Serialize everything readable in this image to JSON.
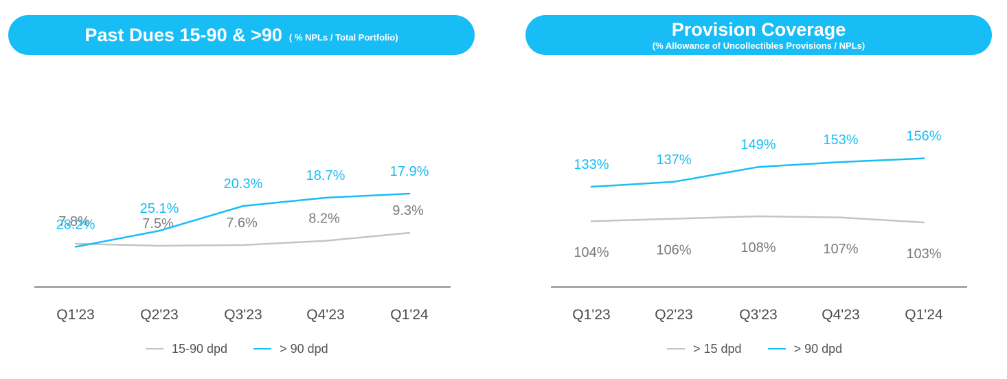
{
  "colors": {
    "blue": "#18bdf5",
    "gray": "#c4c4c4",
    "axis": "#8c8c8c"
  },
  "chart_data": [
    {
      "type": "line",
      "title": "Past Dues 15-90 & >90",
      "subtitle": "( % NPLs / Total Portfolio)",
      "categories": [
        "Q1'23",
        "Q2'23",
        "Q3'23",
        "Q4'23",
        "Q1'24"
      ],
      "series": [
        {
          "name": "15-90 dpd",
          "color": "#c4c4c4",
          "values": [
            7.8,
            7.5,
            7.6,
            8.2,
            9.3
          ],
          "labels": [
            "7.8%",
            "7.5%",
            "7.6%",
            "8.2%",
            "9.3%"
          ]
        },
        {
          "name": "> 90 dpd",
          "color": "#18bdf5",
          "values": [
            28.2,
            25.1,
            20.3,
            18.7,
            17.9
          ],
          "labels": [
            "28.2%",
            "25.1%",
            "20.3%",
            "18.7%",
            "17.9%"
          ]
        }
      ],
      "xlabel": "",
      "ylabel": "",
      "ylim": [
        0,
        30
      ],
      "grid": false,
      "legend": "bottom"
    },
    {
      "type": "line",
      "title": "Provision Coverage",
      "subtitle": "(% Allowance of Uncollectibles Provisions / NPLs)",
      "categories": [
        "Q1'23",
        "Q2'23",
        "Q3'23",
        "Q4'23",
        "Q1'24"
      ],
      "series": [
        {
          "name": "> 15 dpd",
          "color": "#c4c4c4",
          "values": [
            104,
            106,
            108,
            107,
            103
          ],
          "labels": [
            "104%",
            "106%",
            "108%",
            "107%",
            "103%"
          ]
        },
        {
          "name": "> 90 dpd",
          "color": "#18bdf5",
          "values": [
            133,
            137,
            149,
            153,
            156
          ],
          "labels": [
            "133%",
            "137%",
            "149%",
            "153%",
            "156%"
          ]
        }
      ],
      "xlabel": "",
      "ylabel": "",
      "grid": false,
      "legend": "bottom"
    }
  ]
}
